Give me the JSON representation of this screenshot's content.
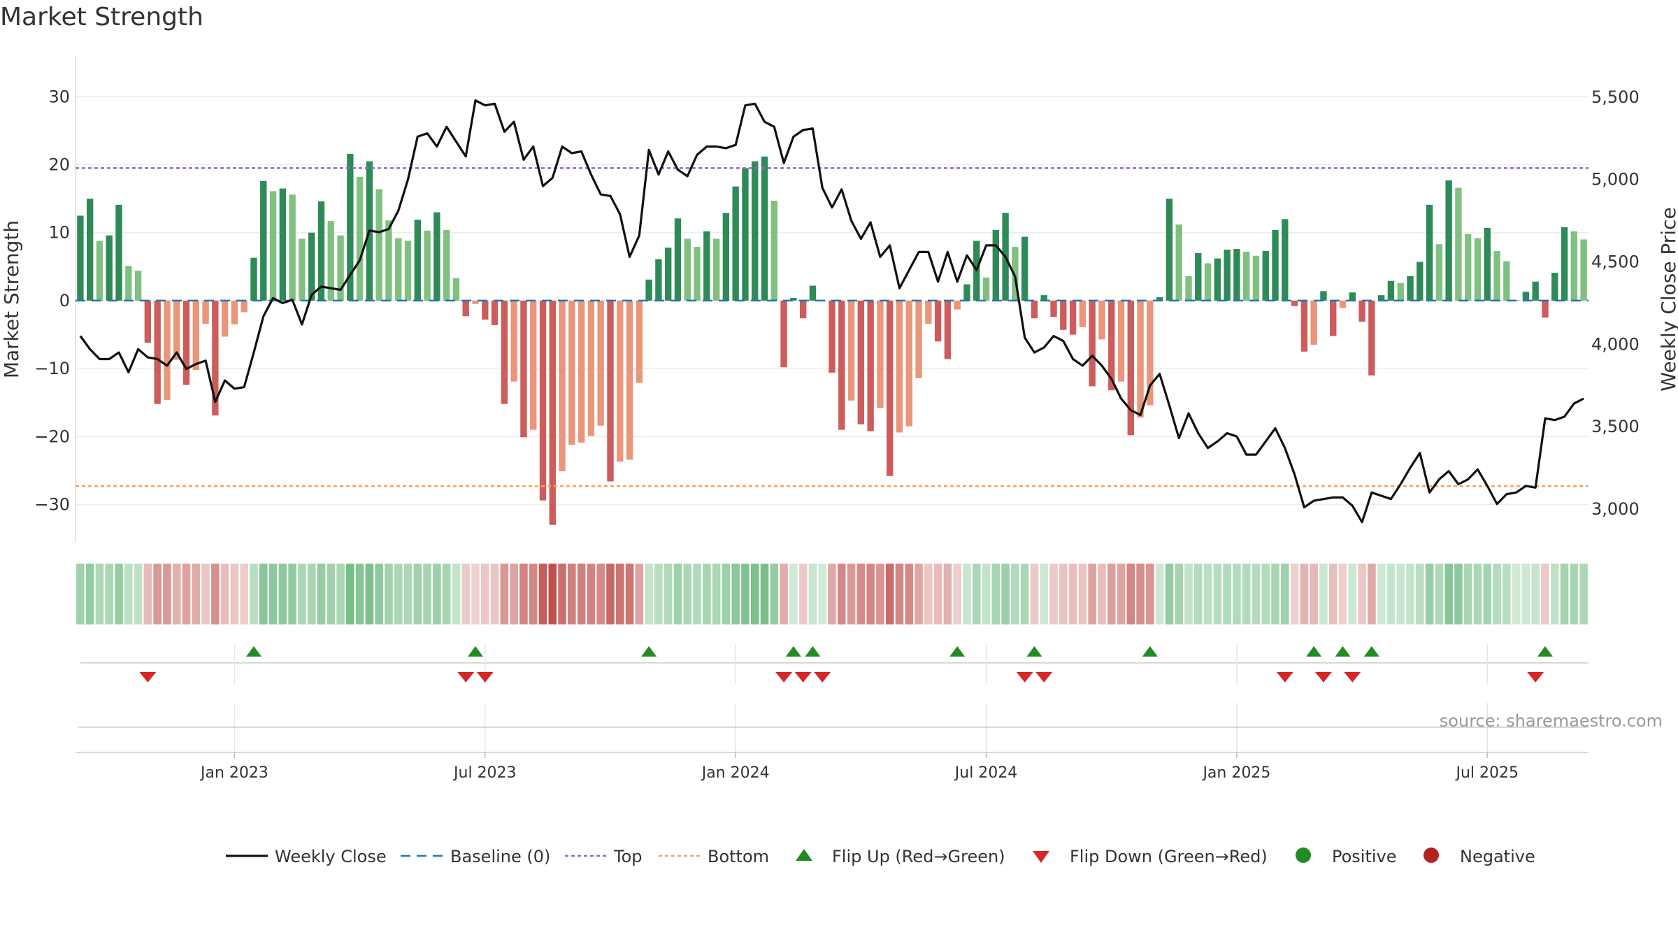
{
  "chart_data": {
    "type": "bar+line",
    "title": "Market Strength",
    "source": "source: sharemaestro.com",
    "left_axis": {
      "label": "Market Strength",
      "range": [
        -35.5,
        36
      ],
      "ticks": [
        30,
        20,
        10,
        0,
        -10,
        -20,
        -30
      ],
      "tick_labels": [
        "30",
        "20",
        "10",
        "0",
        "−10",
        "−20",
        "−30"
      ]
    },
    "right_axis": {
      "label": "Weekly Close Price",
      "range": [
        2800,
        5750
      ],
      "ticks": [
        5500,
        5000,
        4500,
        4000,
        3500,
        3000
      ],
      "tick_labels": [
        "5,500",
        "5,000",
        "4,500",
        "4,000",
        "3,500",
        "3,000"
      ]
    },
    "x_ticks": [
      "Jan 2023",
      "Jul 2023",
      "Jan 2024",
      "Jul 2024",
      "Jan 2025",
      "Jul 2025"
    ],
    "x_tick_index": [
      16,
      42,
      68,
      94,
      120,
      146
    ],
    "top_line": 19.5,
    "bottom_line": -27.3,
    "strength": [
      12.5,
      15,
      8.8,
      9.6,
      14.1,
      5.1,
      4.4,
      -6.2,
      -15.2,
      -14.6,
      -8.7,
      -12.4,
      -10.2,
      -3.4,
      -16.9,
      -5.3,
      -3.5,
      -1.7,
      6.3,
      17.6,
      16.1,
      16.5,
      15.6,
      9.1,
      10,
      14.6,
      11.7,
      9.6,
      21.6,
      18.2,
      20.5,
      16.4,
      11.8,
      9.2,
      8.8,
      11.9,
      10.3,
      13,
      10.4,
      3.3,
      -2.3,
      -0.5,
      -2.8,
      -3.6,
      -15.2,
      -11.9,
      -20.1,
      -19,
      -29.4,
      -33,
      -25.1,
      -21.2,
      -20.9,
      -19.9,
      -18.4,
      -26.6,
      -23.7,
      -23.4,
      -12.1,
      3.1,
      6.1,
      7.8,
      12.1,
      9.1,
      7.9,
      10.2,
      9.1,
      12.9,
      16.8,
      19.5,
      20.5,
      21.2,
      14.7,
      -9.8,
      0.4,
      -2.6,
      2.2,
      0.1,
      -10.6,
      -19,
      -14.7,
      -18.2,
      -19.2,
      -15.8,
      -25.8,
      -19.4,
      -18.5,
      -11.4,
      -3.4,
      -6,
      -8.6,
      -1.3,
      2.4,
      8.8,
      3.4,
      10.4,
      12.9,
      7.9,
      9.4,
      -2.6,
      0.8,
      -2.4,
      -4.3,
      -5,
      -3.9,
      -12.6,
      -5.7,
      -13.2,
      -11.9,
      -19.8,
      -17.2,
      -15.4,
      0.5,
      15,
      11.2,
      3.6,
      7,
      5.5,
      6.2,
      7.5,
      7.6,
      7.2,
      6.6,
      7.3,
      10.4,
      12,
      -0.8,
      -7.5,
      -6.5,
      1.4,
      -5.2,
      -1.1,
      1.2,
      -3.1,
      -11,
      0.8,
      2.9,
      2.6,
      3.6,
      5.7,
      14.1,
      8.3,
      17.7,
      16.6,
      9.8,
      9.2,
      10.7,
      7.3,
      5.8,
      0.1,
      1.3,
      2.8,
      -2.5,
      4.1,
      10.8,
      10.2,
      9
    ],
    "weekly_close": [
      4050,
      3970,
      3910,
      3910,
      3950,
      3830,
      3970,
      3920,
      3910,
      3870,
      3950,
      3850,
      3880,
      3900,
      3650,
      3780,
      3730,
      3740,
      3950,
      4170,
      4280,
      4250,
      4270,
      4120,
      4300,
      4350,
      4340,
      4330,
      4420,
      4510,
      4690,
      4680,
      4700,
      4810,
      5000,
      5260,
      5280,
      5200,
      5320,
      5230,
      5140,
      5480,
      5450,
      5460,
      5290,
      5350,
      5120,
      5200,
      4960,
      5010,
      5200,
      5160,
      5170,
      5030,
      4910,
      4900,
      4790,
      4530,
      4660,
      5180,
      5030,
      5170,
      5060,
      5020,
      5150,
      5200,
      5200,
      5190,
      5210,
      5450,
      5460,
      5350,
      5320,
      5100,
      5260,
      5300,
      5310,
      4950,
      4830,
      4940,
      4750,
      4640,
      4740,
      4530,
      4600,
      4340,
      4450,
      4560,
      4560,
      4380,
      4560,
      4380,
      4540,
      4450,
      4600,
      4600,
      4530,
      4410,
      4040,
      3950,
      3980,
      4050,
      4020,
      3910,
      3870,
      3930,
      3870,
      3790,
      3670,
      3600,
      3570,
      3750,
      3820,
      3630,
      3430,
      3580,
      3460,
      3370,
      3410,
      3460,
      3440,
      3330,
      3330,
      3410,
      3490,
      3370,
      3210,
      3010,
      3050,
      3060,
      3070,
      3070,
      3020,
      2920,
      3100,
      3080,
      3060,
      3150,
      3250,
      3340,
      3100,
      3180,
      3230,
      3150,
      3180,
      3240,
      3140,
      3030,
      3090,
      3100,
      3140,
      3130,
      3550,
      3540,
      3560,
      3640,
      3670
    ],
    "flip_up_index": [
      18,
      41,
      59,
      74,
      76,
      91,
      99,
      111,
      128,
      131,
      134,
      152
    ],
    "flip_down_index": [
      7,
      40,
      42,
      73,
      75,
      77,
      98,
      100,
      125,
      129,
      132,
      151
    ],
    "legend": [
      "Weekly Close",
      "Baseline (0)",
      "Top",
      "Bottom",
      "Flip Up (Red→Green)",
      "Flip Down (Green→Red)",
      "Positive",
      "Negative"
    ],
    "colors": {
      "line": "#111111",
      "baseline": "#1f77b4",
      "top": "#9467bd",
      "bottom": "#f2a35e",
      "pos_dark": "#2e8b57",
      "pos_light": "#80c080",
      "neg_dark": "#cd5c5c",
      "neg_light": "#e9967a",
      "flip_up": "#228b22",
      "flip_down": "#d62728",
      "positive": "#228b22",
      "negative": "#b22222"
    }
  }
}
